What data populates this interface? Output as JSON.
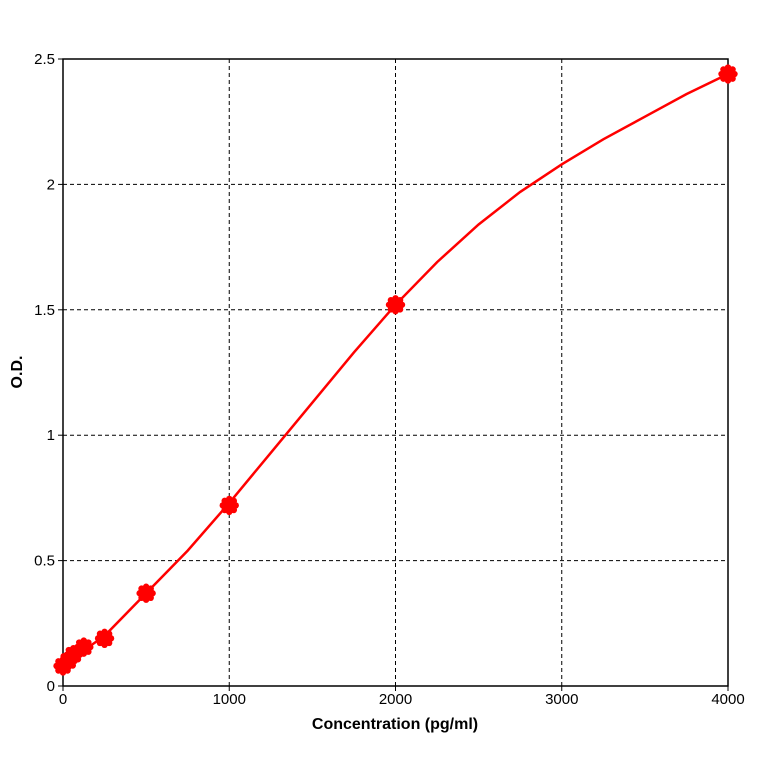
{
  "chart_data": {
    "type": "scatter",
    "title": "",
    "xlabel": "Concentration (pg/ml)",
    "ylabel": "O.D.",
    "xlim": [
      0,
      4000
    ],
    "ylim": [
      0,
      2.5
    ],
    "x_ticks": [
      {
        "value": 0,
        "label": "0"
      },
      {
        "value": 1000,
        "label": "1000"
      },
      {
        "value": 2000,
        "label": "2000"
      },
      {
        "value": 3000,
        "label": "3000"
      },
      {
        "value": 4000,
        "label": "4000"
      }
    ],
    "y_ticks": [
      {
        "value": 0,
        "label": "0"
      },
      {
        "value": 0.5,
        "label": "0.5"
      },
      {
        "value": 1,
        "label": "1"
      },
      {
        "value": 1.5,
        "label": "1.5"
      },
      {
        "value": 2,
        "label": "2"
      },
      {
        "value": 2.5,
        "label": "2.5"
      }
    ],
    "grid": true,
    "legend": "none",
    "color": "#ff0000",
    "series": [
      {
        "points": [
          {
            "x": 0,
            "y": 0.08
          },
          {
            "x": 31.25,
            "y": 0.1
          },
          {
            "x": 62.5,
            "y": 0.125
          },
          {
            "x": 125,
            "y": 0.155
          },
          {
            "x": 250,
            "y": 0.19
          },
          {
            "x": 500,
            "y": 0.37
          },
          {
            "x": 1000,
            "y": 0.72
          },
          {
            "x": 2000,
            "y": 1.52
          },
          {
            "x": 4000,
            "y": 2.44
          }
        ],
        "fit_curve": [
          {
            "x": 0,
            "y": 0.085
          },
          {
            "x": 100,
            "y": 0.13
          },
          {
            "x": 250,
            "y": 0.2
          },
          {
            "x": 500,
            "y": 0.37
          },
          {
            "x": 750,
            "y": 0.54
          },
          {
            "x": 1000,
            "y": 0.73
          },
          {
            "x": 1250,
            "y": 0.93
          },
          {
            "x": 1500,
            "y": 1.13
          },
          {
            "x": 1750,
            "y": 1.33
          },
          {
            "x": 2000,
            "y": 1.52
          },
          {
            "x": 2250,
            "y": 1.69
          },
          {
            "x": 2500,
            "y": 1.84
          },
          {
            "x": 2750,
            "y": 1.97
          },
          {
            "x": 3000,
            "y": 2.08
          },
          {
            "x": 3250,
            "y": 2.18
          },
          {
            "x": 3500,
            "y": 2.27
          },
          {
            "x": 3750,
            "y": 2.36
          },
          {
            "x": 4000,
            "y": 2.44
          }
        ]
      }
    ]
  }
}
